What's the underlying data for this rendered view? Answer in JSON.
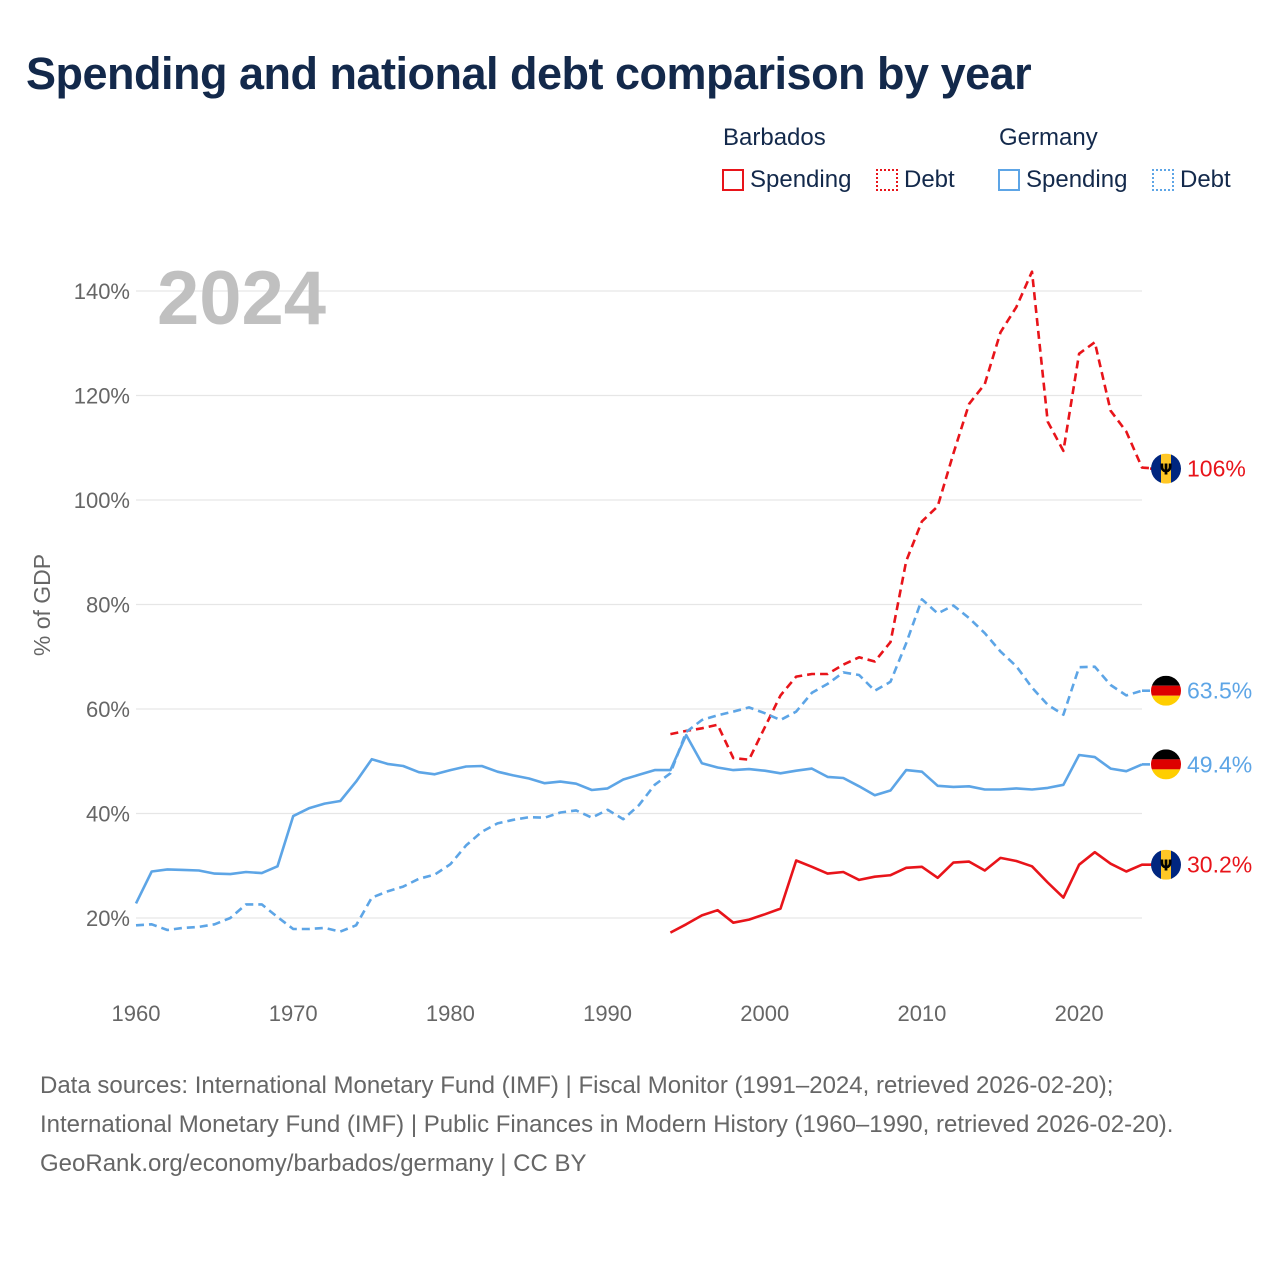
{
  "title": "Spending and national debt comparison by year",
  "legend": {
    "groups": [
      {
        "name": "Barbados",
        "spending_label": "Spending",
        "debt_label": "Debt",
        "color": "#e8141a"
      },
      {
        "name": "Germany",
        "spending_label": "Spending",
        "debt_label": "Debt",
        "color": "#5da5e6"
      }
    ]
  },
  "footer": {
    "sources": "Data sources: International Monetary Fund (IMF) | Fiscal Monitor (1991–2024, retrieved 2026-02-20); International Monetary Fund (IMF) | Public Finances in Modern History (1960–1990, retrieved 2026-02-20).",
    "credit": "GeoRank.org/economy/barbados/germany | CC BY"
  },
  "chart_data": {
    "type": "line",
    "title": "Spending and national debt comparison by year",
    "year_label": "2024",
    "ylabel": "% of GDP",
    "xlabel": "",
    "xlim": [
      1960,
      2024
    ],
    "ylim": [
      10,
      145
    ],
    "grid": true,
    "legend_position": "top-right",
    "x_ticks": [
      1960,
      1970,
      1980,
      1990,
      2000,
      2010,
      2020
    ],
    "y_ticks": [
      20,
      40,
      60,
      80,
      100,
      120,
      140
    ],
    "y_tick_labels": [
      "20%",
      "40%",
      "60%",
      "80%",
      "100%",
      "120%",
      "140%"
    ],
    "series": [
      {
        "name": "Barbados Debt",
        "country": "Barbados",
        "kind": "debt",
        "color": "#e8141a",
        "dashed": true,
        "end_label": "106%",
        "flag": "barbados",
        "start_year": 1994,
        "values": [
          55.2,
          55.8,
          56.3,
          57.0,
          50.6,
          50.3,
          56.5,
          62.6,
          66.2,
          66.7,
          66.7,
          68.5,
          69.9,
          69.1,
          72.8,
          88.3,
          95.9,
          98.8,
          108.9,
          118.4,
          122.2,
          132.1,
          136.9,
          143.7,
          115.0,
          109.4,
          128.0,
          130.2,
          117.1,
          113.1,
          106.2,
          106.0
        ]
      },
      {
        "name": "Barbados Spending",
        "country": "Barbados",
        "kind": "spending",
        "color": "#e8141a",
        "dashed": false,
        "end_label": "30.2%",
        "flag": "barbados",
        "start_year": 1994,
        "values": [
          17.2,
          18.8,
          20.5,
          21.5,
          19.1,
          19.7,
          20.7,
          21.8,
          31.0,
          29.8,
          28.5,
          28.8,
          27.3,
          27.9,
          28.2,
          29.6,
          29.8,
          27.7,
          30.6,
          30.8,
          29.1,
          31.5,
          30.9,
          29.9,
          26.8,
          23.9,
          30.2,
          32.6,
          30.4,
          28.9,
          30.2,
          30.2
        ]
      },
      {
        "name": "Germany Debt",
        "country": "Germany",
        "kind": "debt",
        "color": "#5da5e6",
        "dashed": true,
        "end_label": "63.5%",
        "flag": "germany",
        "start_year": 1960,
        "values": [
          18.6,
          18.8,
          17.7,
          18.1,
          18.3,
          18.8,
          20.0,
          22.6,
          22.6,
          20.2,
          17.9,
          17.9,
          18.1,
          17.4,
          18.6,
          23.9,
          25.1,
          26.0,
          27.5,
          28.3,
          30.3,
          33.9,
          36.5,
          38.1,
          38.8,
          39.3,
          39.2,
          40.2,
          40.6,
          39.2,
          40.7,
          38.9,
          41.6,
          45.5,
          47.7,
          55.6,
          57.9,
          58.8,
          59.5,
          60.3,
          59.2,
          57.9,
          59.5,
          63.1,
          64.8,
          67.0,
          66.5,
          63.5,
          65.2,
          72.6,
          81.0,
          78.3,
          79.8,
          77.4,
          74.5,
          71.0,
          68.2,
          64.1,
          60.8,
          58.9,
          68.0,
          68.1,
          64.6,
          62.6,
          63.5
        ]
      },
      {
        "name": "Germany Spending",
        "country": "Germany",
        "kind": "spending",
        "color": "#5da5e6",
        "dashed": false,
        "end_label": "49.4%",
        "flag": "germany",
        "start_year": 1960,
        "values": [
          22.8,
          28.9,
          29.3,
          29.2,
          29.1,
          28.5,
          28.4,
          28.8,
          28.6,
          29.9,
          39.5,
          41.0,
          41.9,
          42.4,
          46.1,
          50.4,
          49.5,
          49.1,
          47.9,
          47.5,
          48.3,
          49.0,
          49.1,
          48.0,
          47.3,
          46.7,
          45.8,
          46.1,
          45.7,
          44.5,
          44.8,
          46.5,
          47.4,
          48.3,
          48.3,
          55.0,
          49.6,
          48.8,
          48.3,
          48.5,
          48.2,
          47.7,
          48.2,
          48.6,
          47.0,
          46.8,
          45.2,
          43.5,
          44.4,
          48.3,
          48.0,
          45.3,
          45.1,
          45.2,
          44.6,
          44.6,
          44.8,
          44.6,
          44.9,
          45.5,
          51.2,
          50.8,
          48.6,
          48.1,
          49.4
        ]
      }
    ]
  }
}
